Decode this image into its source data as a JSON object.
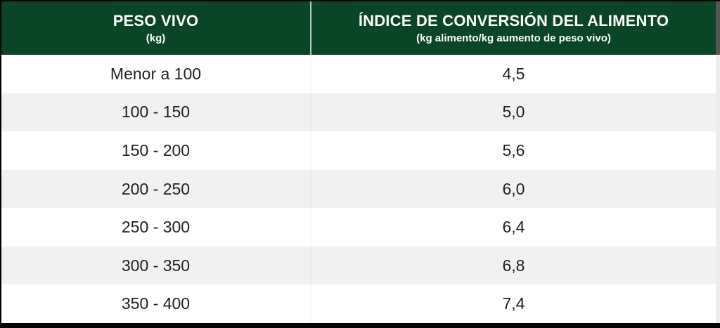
{
  "table": {
    "columns": [
      {
        "title": "PESO VIVO",
        "subtitle": "(kg)"
      },
      {
        "title": "ÍNDICE DE CONVERSIÓN DEL ALIMENTO",
        "subtitle": "(kg alimento/kg aumento de peso vivo)"
      }
    ],
    "rows": [
      {
        "peso": "Menor a 100",
        "indice": "4,5"
      },
      {
        "peso": "100 - 150",
        "indice": "5,0"
      },
      {
        "peso": "150 - 200",
        "indice": "5,6"
      },
      {
        "peso": "200 - 250",
        "indice": "6,0"
      },
      {
        "peso": "250 - 300",
        "indice": "6,4"
      },
      {
        "peso": "300 - 350",
        "indice": "6,8"
      },
      {
        "peso": "350 - 400",
        "indice": "7,4"
      }
    ]
  },
  "colors": {
    "header_bg": "#0a4527",
    "header_text": "#ffffff",
    "row_white": "#ffffff",
    "row_alt": "#f1f1f1",
    "body_text": "#1f1f1f",
    "frame_black": "#000000",
    "right_strip_top": "#565656",
    "right_strip_bottom": "#ececec"
  },
  "chart_data": {
    "type": "table",
    "title": "",
    "columns": [
      "PESO VIVO (kg)",
      "ÍNDICE DE CONVERSIÓN DEL ALIMENTO (kg alimento/kg aumento de peso vivo)"
    ],
    "rows": [
      [
        "Menor a 100",
        "4,5"
      ],
      [
        "100 - 150",
        "5,0"
      ],
      [
        "150 - 200",
        "5,6"
      ],
      [
        "200 - 250",
        "6,0"
      ],
      [
        "250 - 300",
        "6,4"
      ],
      [
        "300 - 350",
        "6,8"
      ],
      [
        "350 - 400",
        "7,4"
      ]
    ],
    "values_numeric": [
      4.5,
      5.0,
      5.6,
      6.0,
      6.4,
      6.8,
      7.4
    ],
    "layout_hints": {
      "header_style": "dark-green, white bold text, two-line header",
      "row_striping": "white / light-gray alternating",
      "alignment": "all cells centered"
    }
  }
}
